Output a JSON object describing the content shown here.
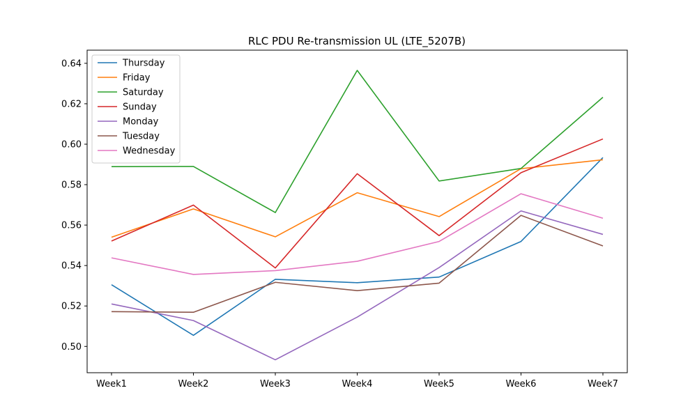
{
  "chart_data": {
    "type": "line",
    "title": "RLC PDU Re-transmission UL (LTE_5207B)",
    "xlabel": "",
    "ylabel": "",
    "categories": [
      "Week1",
      "Week2",
      "Week3",
      "Week4",
      "Week5",
      "Week6",
      "Week7"
    ],
    "ylim": [
      0.487,
      0.6465
    ],
    "yticks": [
      0.5,
      0.52,
      0.54,
      0.56,
      0.58,
      0.6,
      0.62,
      0.64
    ],
    "ytick_labels": [
      "0.50",
      "0.52",
      "0.54",
      "0.56",
      "0.58",
      "0.60",
      "0.62",
      "0.64"
    ],
    "grid": false,
    "legend_position": "top-left",
    "series": [
      {
        "name": "Thursday",
        "color": "#1f77b4",
        "values": [
          0.5305,
          0.5055,
          0.5332,
          0.5315,
          0.5343,
          0.5519,
          0.5934
        ]
      },
      {
        "name": "Friday",
        "color": "#ff7f0e",
        "values": [
          0.554,
          0.568,
          0.5542,
          0.576,
          0.5642,
          0.5879,
          0.5923
        ]
      },
      {
        "name": "Saturday",
        "color": "#2ca02c",
        "values": [
          0.5889,
          0.589,
          0.5662,
          0.6365,
          0.5818,
          0.588,
          0.6232
        ]
      },
      {
        "name": "Sunday",
        "color": "#d62728",
        "values": [
          0.5521,
          0.5699,
          0.5388,
          0.5854,
          0.5548,
          0.5859,
          0.6026
        ]
      },
      {
        "name": "Monday",
        "color": "#9467bd",
        "values": [
          0.521,
          0.5128,
          0.4934,
          0.5145,
          0.539,
          0.567,
          0.5554
        ]
      },
      {
        "name": "Tuesday",
        "color": "#8c564b",
        "values": [
          0.5172,
          0.5169,
          0.5317,
          0.5276,
          0.5313,
          0.5648,
          0.5497
        ]
      },
      {
        "name": "Wednesday",
        "color": "#e377c2",
        "values": [
          0.5438,
          0.5356,
          0.5375,
          0.5421,
          0.5519,
          0.5755,
          0.5634
        ]
      }
    ]
  }
}
